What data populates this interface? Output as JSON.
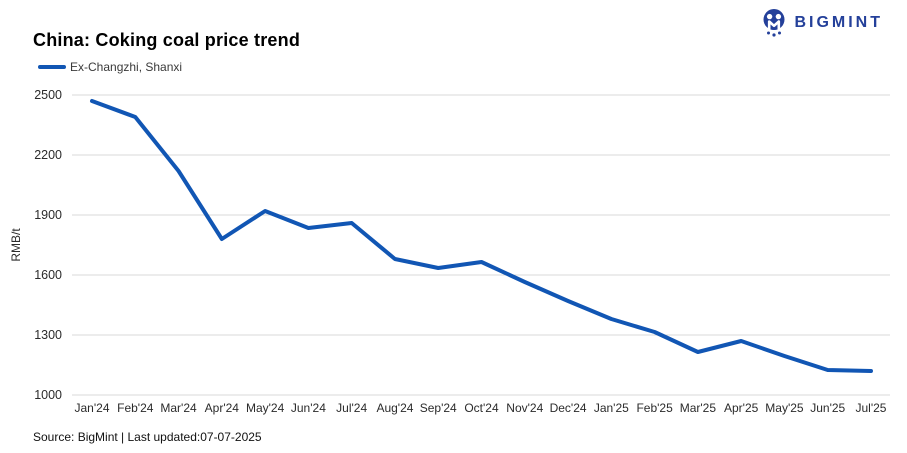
{
  "header": {
    "title": "China: Coking coal price trend",
    "brand": "BIGMINT",
    "brand_color": "#24409a"
  },
  "legend": {
    "label": "Ex-Changzhi, Shanxi"
  },
  "footer": {
    "text": "Source: BigMint | Last updated:07-07-2025"
  },
  "chart_data": {
    "type": "line",
    "title": "China: Coking coal price trend",
    "xlabel": "",
    "ylabel": "RMB/t",
    "categories": [
      "Jan'24",
      "Feb'24",
      "Mar'24",
      "Apr'24",
      "May'24",
      "Jun'24",
      "Jul'24",
      "Aug'24",
      "Sep'24",
      "Oct'24",
      "Nov'24",
      "Dec'24",
      "Jan'25",
      "Feb'25",
      "Mar'25",
      "Apr'25",
      "May'25",
      "Jun'25",
      "Jul'25"
    ],
    "series": [
      {
        "name": "Ex-Changzhi, Shanxi",
        "values": [
          2470,
          2390,
          2120,
          1780,
          1920,
          1835,
          1860,
          1680,
          1635,
          1665,
          1565,
          1470,
          1380,
          1315,
          1215,
          1270,
          1195,
          1125,
          1120
        ]
      }
    ],
    "y_ticks": [
      1000,
      1300,
      1600,
      1900,
      2200,
      2500
    ],
    "ylim": [
      1000,
      2500
    ],
    "grid": "horizontal",
    "gridline_color": "#d9d9d9",
    "line_color": "#1156b4",
    "axis_text_color": "#2b2b2b",
    "legend_position": "top-left"
  }
}
